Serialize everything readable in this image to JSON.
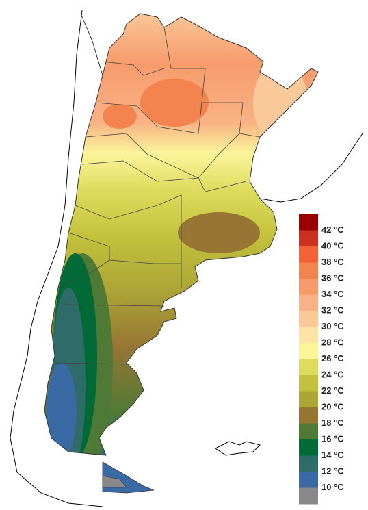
{
  "legend": {
    "swatches": [
      "#990000",
      "#cc3020",
      "#f26235",
      "#f4844f",
      "#f79b6c",
      "#f8b285",
      "#fac99a",
      "#fde3a6",
      "#fbf59a",
      "#dedc5e",
      "#c4c23c",
      "#ada637",
      "#977634",
      "#4f7a36",
      "#006a36",
      "#2f6b68",
      "#3a6aa3",
      "#888888"
    ],
    "labels": [
      "42 °C",
      "40 °C",
      "38 °C",
      "36 °C",
      "34 °C",
      "32 °C",
      "30 °C",
      "28 °C",
      "26 °C",
      "24 °C",
      "22 °C",
      "20 °C",
      "18 °C",
      "16 °C",
      "14 °C",
      "12 °C",
      "10 °C"
    ]
  }
}
